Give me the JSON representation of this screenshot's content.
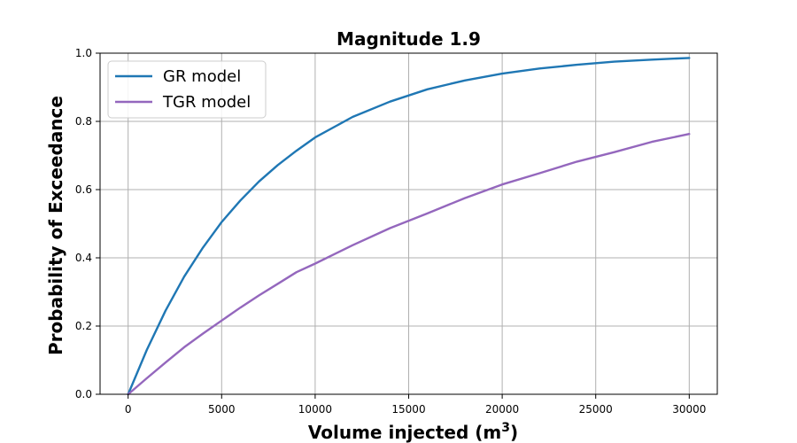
{
  "chart_data": {
    "type": "line",
    "title": "Magnitude 1.9",
    "xlabel": "Volume injected (m",
    "xlabel_superscript": "3",
    "xlabel_suffix": ")",
    "ylabel": "Probability of Exceedance",
    "xlim": [
      -1500,
      31500
    ],
    "ylim": [
      0,
      1
    ],
    "xticks": [
      0,
      5000,
      10000,
      15000,
      20000,
      25000,
      30000
    ],
    "yticks": [
      0.0,
      0.2,
      0.4,
      0.6,
      0.8,
      1.0
    ],
    "xtick_labels": [
      "0",
      "5000",
      "10000",
      "15000",
      "20000",
      "25000",
      "30000"
    ],
    "ytick_labels": [
      "0.0",
      "0.2",
      "0.4",
      "0.6",
      "0.8",
      "1.0"
    ],
    "grid": true,
    "legend_position": "top-left",
    "series": [
      {
        "name": "GR model",
        "color": "#1f77b4",
        "x": [
          0,
          1000,
          2000,
          3000,
          4000,
          5000,
          6000,
          7000,
          8000,
          9000,
          10000,
          12000,
          14000,
          16000,
          18000,
          20000,
          22000,
          24000,
          26000,
          28000,
          30000
        ],
        "y": [
          0.0,
          0.13,
          0.245,
          0.345,
          0.43,
          0.505,
          0.568,
          0.624,
          0.672,
          0.714,
          0.753,
          0.813,
          0.858,
          0.894,
          0.92,
          0.94,
          0.955,
          0.966,
          0.975,
          0.981,
          0.986
        ]
      },
      {
        "name": "TGR model",
        "color": "#9467bd",
        "x": [
          0,
          1000,
          2000,
          3000,
          4000,
          5000,
          6000,
          7000,
          8000,
          9000,
          10000,
          12000,
          14000,
          16000,
          18000,
          20000,
          22000,
          24000,
          26000,
          28000,
          30000
        ],
        "y": [
          0.0,
          0.047,
          0.093,
          0.138,
          0.178,
          0.216,
          0.254,
          0.29,
          0.324,
          0.358,
          0.383,
          0.437,
          0.487,
          0.53,
          0.575,
          0.615,
          0.648,
          0.682,
          0.71,
          0.74,
          0.763
        ]
      }
    ]
  }
}
